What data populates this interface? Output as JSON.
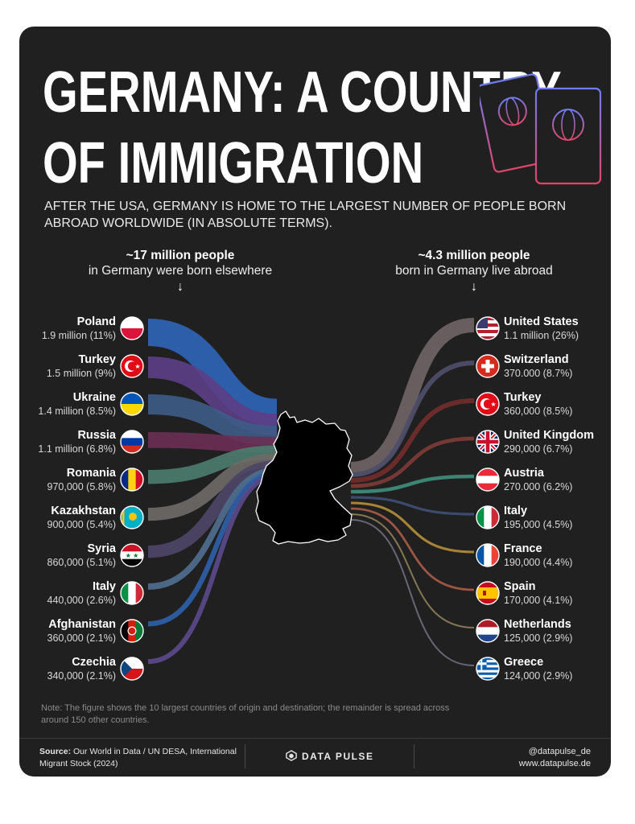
{
  "title": "GERMANY: A COUNTRY OF IMMIGRATION",
  "title_lines": [
    "GERMANY: A COUNTRY",
    "OF IMMIGRATION"
  ],
  "subtitle": "AFTER THE USA, GERMANY IS HOME TO THE LARGEST NUMBER OF PEOPLE BORN ABROAD WORLDWIDE (IN ABSOLUTE TERMS).",
  "left_header": {
    "bold": "~17 million people",
    "normal": "in Germany were born elsewhere"
  },
  "right_header": {
    "bold": "~4.3 million people",
    "normal": "born in Germany live abroad"
  },
  "chart_data": {
    "type": "sankey",
    "inflows": [
      {
        "country": "Poland",
        "value_text": "1.9 million (11%)",
        "value_millions": 1.9,
        "share_pct": 11,
        "color": "#2f64b6",
        "flag": "poland"
      },
      {
        "country": "Turkey",
        "value_text": "1.5 million (9%)",
        "value_millions": 1.5,
        "share_pct": 9,
        "color": "#5c3f86",
        "flag": "turkey"
      },
      {
        "country": "Ukraine",
        "value_text": "1.4 million (8.5%)",
        "value_millions": 1.4,
        "share_pct": 8.5,
        "color": "#3e5b86",
        "flag": "ukraine"
      },
      {
        "country": "Russia",
        "value_text": "1.1 million (6.8%)",
        "value_millions": 1.1,
        "share_pct": 6.8,
        "color": "#6a2f55",
        "flag": "russia"
      },
      {
        "country": "Romania",
        "value_text": "970,000 (5.8%)",
        "value_millions": 0.97,
        "share_pct": 5.8,
        "color": "#4b7c6c",
        "flag": "romania"
      },
      {
        "country": "Kazakhstan",
        "value_text": "900,000 (5.4%)",
        "value_millions": 0.9,
        "share_pct": 5.4,
        "color": "#6e6966",
        "flag": "kazakhstan"
      },
      {
        "country": "Syria",
        "value_text": "860,000 (5.1%)",
        "value_millions": 0.86,
        "share_pct": 5.1,
        "color": "#4d4566",
        "flag": "syria"
      },
      {
        "country": "Italy",
        "value_text": "440,000 (2.6%)",
        "value_millions": 0.44,
        "share_pct": 2.6,
        "color": "#4f6e8e",
        "flag": "italy"
      },
      {
        "country": "Afghanistan",
        "value_text": "360,000 (2.1%)",
        "value_millions": 0.36,
        "share_pct": 2.1,
        "color": "#2e5fa8",
        "flag": "afghanistan"
      },
      {
        "country": "Czechia",
        "value_text": "340,000 (2.1%)",
        "value_millions": 0.34,
        "share_pct": 2.1,
        "color": "#5a4a8a",
        "flag": "czechia"
      }
    ],
    "outflows": [
      {
        "country": "United States",
        "value_text": "1.1 million (26%)",
        "value_millions": 1.1,
        "share_pct": 26,
        "color": "#6d6264",
        "flag": "usa"
      },
      {
        "country": "Switzerland",
        "value_text": "370.000 (8.7%)",
        "value_millions": 0.37,
        "share_pct": 8.7,
        "color": "#4e4d68",
        "flag": "switzerland"
      },
      {
        "country": "Turkey",
        "value_text": "360,000 (8.5%)",
        "value_millions": 0.36,
        "share_pct": 8.5,
        "color": "#702c2c",
        "flag": "turkey"
      },
      {
        "country": "United Kingdom",
        "value_text": "290,000 (6.7%)",
        "value_millions": 0.29,
        "share_pct": 6.7,
        "color": "#7a3a36",
        "flag": "uk"
      },
      {
        "country": "Austria",
        "value_text": "270.000 (6.2%)",
        "value_millions": 0.27,
        "share_pct": 6.2,
        "color": "#3f8a78",
        "flag": "austria"
      },
      {
        "country": "Italy",
        "value_text": "195,000 (4.5%)",
        "value_millions": 0.195,
        "share_pct": 4.5,
        "color": "#3e4e72",
        "flag": "italy"
      },
      {
        "country": "France",
        "value_text": "190,000 (4.4%)",
        "value_millions": 0.19,
        "share_pct": 4.4,
        "color": "#b08a3a",
        "flag": "france"
      },
      {
        "country": "Spain",
        "value_text": "170,000 (4.1%)",
        "value_millions": 0.17,
        "share_pct": 4.1,
        "color": "#a55a47",
        "flag": "spain"
      },
      {
        "country": "Netherlands",
        "value_text": "125,000 (2.9%)",
        "value_millions": 0.125,
        "share_pct": 2.9,
        "color": "#8a7a58",
        "flag": "netherlands"
      },
      {
        "country": "Greece",
        "value_text": "124,000 (2.9%)",
        "value_millions": 0.124,
        "share_pct": 2.9,
        "color": "#6a6a7a",
        "flag": "greece"
      }
    ]
  },
  "note": "Note: The figure shows the 10 largest countries of origin and destination; the remainder is spread across around 150 other countries.",
  "footer": {
    "source_label": "Source:",
    "source_text": "Our World in Data / UN DESA, International Migrant Stock (2024)",
    "brand": "DATA PULSE",
    "handle": "@datapulse_de",
    "website": "www.datapulse.de"
  },
  "colors": {
    "card_bg": "#202020",
    "text": "#ffffff",
    "passport_gradient": [
      "#7a4ad8",
      "#e0456a"
    ]
  }
}
